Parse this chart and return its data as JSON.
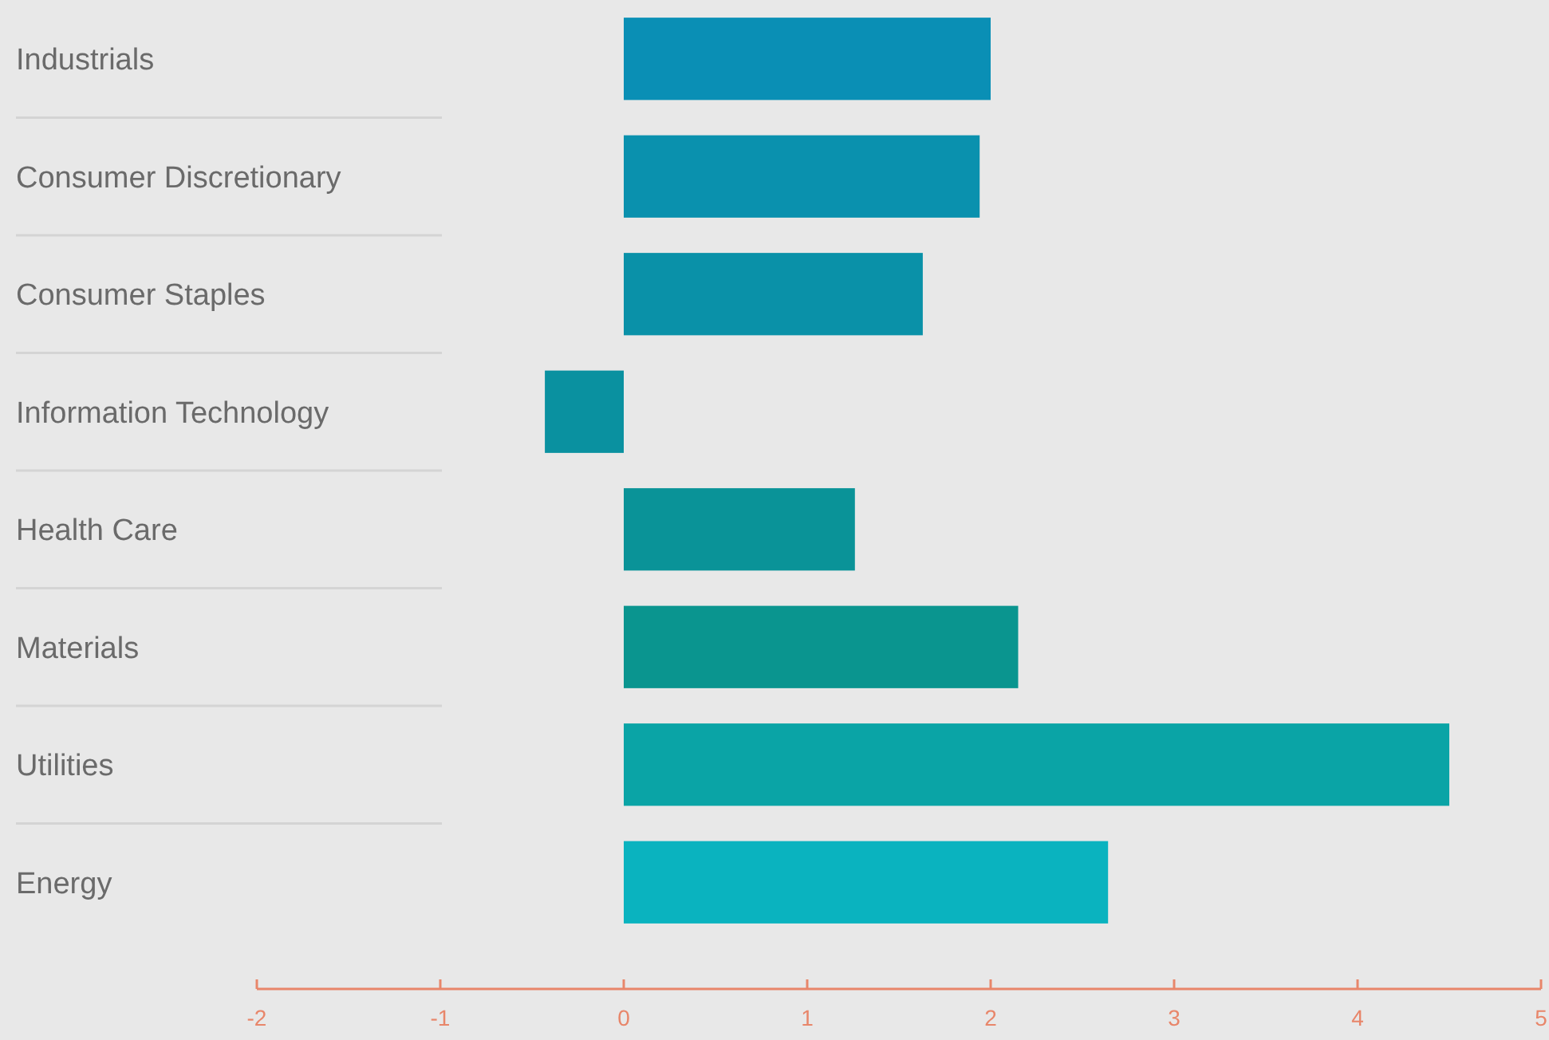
{
  "chart_data": {
    "type": "bar",
    "orientation": "horizontal",
    "categories": [
      "Industrials",
      "Consumer Discretionary",
      "Consumer Staples",
      "Information Technology",
      "Health Care",
      "Materials",
      "Utilities",
      "Energy"
    ],
    "values": [
      2.0,
      1.94,
      1.63,
      -0.43,
      1.26,
      2.15,
      4.5,
      2.64
    ],
    "colors": [
      "#0a8fb5",
      "#0a91ae",
      "#0a91a8",
      "#0a91a0",
      "#0a9398",
      "#0a958f",
      "#0aa4a6",
      "#0ab3bf"
    ],
    "xlim": [
      -2,
      5
    ],
    "xticks": [
      -2,
      -1,
      0,
      1,
      2,
      3,
      4,
      5
    ],
    "grid": false
  }
}
